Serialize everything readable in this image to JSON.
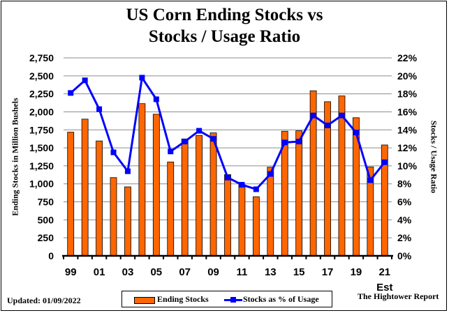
{
  "chart_data": {
    "type": "bar+line",
    "title_line1": "US Corn Ending Stocks vs",
    "title_line2": "Stocks / Usage Ratio",
    "ylabel": "Ending Stocks in Million Bushels",
    "y2label": "Stocks / Usage Ratio",
    "ylim": [
      0,
      2750
    ],
    "y2lim": [
      0,
      22
    ],
    "yticks": [
      "0",
      "250",
      "500",
      "750",
      "1,000",
      "1,250",
      "1,500",
      "1,750",
      "2,000",
      "2,250",
      "2,500",
      "2,750"
    ],
    "y2ticks": [
      "0%",
      "2%",
      "4%",
      "6%",
      "8%",
      "10%",
      "12%",
      "14%",
      "16%",
      "18%",
      "20%",
      "22%"
    ],
    "grid": true,
    "categories": [
      "1999",
      "2000",
      "2001",
      "2002",
      "2003",
      "2004",
      "2005",
      "2006",
      "2007",
      "2008",
      "2009",
      "2010",
      "2011",
      "2012",
      "2013",
      "2014",
      "2015",
      "2016",
      "2017",
      "2018",
      "2019",
      "2020",
      "2021"
    ],
    "xticklabels": [
      "99",
      "",
      "01",
      "",
      "03",
      "",
      "05",
      "",
      "07",
      "",
      "09",
      "",
      "11",
      "",
      "13",
      "",
      "15",
      "",
      "17",
      "",
      "19",
      "",
      "21"
    ],
    "xsublabel": "Est",
    "series": [
      {
        "name": "Ending Stocks",
        "type": "bar",
        "axis": "left",
        "color": "#FF6600",
        "values": [
          1718,
          1899,
          1596,
          1087,
          958,
          2114,
          1967,
          1304,
          1624,
          1673,
          1708,
          1128,
          989,
          821,
          1232,
          1731,
          1737,
          2293,
          2141,
          2221,
          1919,
          1235,
          1540
        ]
      },
      {
        "name": "Stocks as % of Usage",
        "type": "line",
        "axis": "right",
        "color": "#0000FF",
        "values": [
          18.1,
          19.5,
          16.3,
          11.5,
          9.4,
          19.8,
          17.4,
          11.6,
          12.7,
          13.9,
          13.0,
          8.7,
          7.9,
          7.4,
          9.1,
          12.6,
          12.7,
          15.6,
          14.5,
          15.6,
          13.7,
          8.4,
          10.4
        ]
      }
    ],
    "legend": "bottom"
  },
  "footer": {
    "updated": "Updated:  01/09/2022",
    "source": "The Hightower Report"
  }
}
